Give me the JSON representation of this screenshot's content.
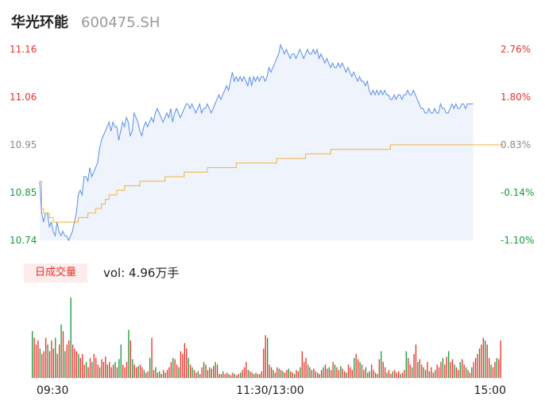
{
  "header": {
    "name": "华光环能",
    "code": "600475.SH"
  },
  "colors": {
    "up": "#e8322c",
    "down": "#1a9a3a",
    "price_line": "#5b8ee6",
    "avg_line": "#f2b33c",
    "fill": "#eef3fc"
  },
  "volume_panel": {
    "badge": "日成交量",
    "vol_label": "vol: 4.96万手"
  },
  "chart_data": [
    {
      "type": "line",
      "y_ticks_left": [
        "11.16",
        "11.06",
        "10.95",
        "10.85",
        "10.74"
      ],
      "y_ticks_right": [
        "2.76%",
        "1.80%",
        "0.83%",
        "-0.14%",
        "-1.10%"
      ],
      "ylim": [
        10.74,
        11.16
      ],
      "x_range": [
        0,
        240
      ],
      "series": [
        {
          "values": [
            10.87,
            10.8,
            10.78,
            10.8,
            10.8,
            10.77,
            10.78,
            10.76,
            10.75,
            10.78,
            10.76,
            10.75,
            10.76,
            10.75,
            10.75,
            10.74,
            10.75,
            10.76,
            10.78,
            10.8,
            10.84,
            10.85,
            10.84,
            10.88,
            10.88,
            10.87,
            10.9,
            10.88,
            10.89,
            10.9,
            10.91,
            10.94,
            10.96,
            10.97,
            10.98,
            10.99,
            11,
            10.98,
            11,
            10.99,
            10.99,
            10.96,
            10.98,
            11,
            10.99,
            11.01,
            11,
            10.97,
            10.98,
            11.02,
            11.01,
            11.0,
            10.98,
            10.97,
            10.99,
            11.0,
            10.99,
            11.0,
            11.01,
            11.0,
            11.02,
            11.03,
            11.02,
            11.01,
            11.0,
            11.01,
            11.02,
            11.01,
            11.03,
            11.0,
            11.02,
            11.03,
            11.02,
            11.01,
            11.02,
            11.03,
            11.04,
            11.04,
            11.03,
            11.04,
            11.03,
            11.02,
            11.03,
            11.04,
            11.02,
            11.03,
            11.03,
            11.04,
            11.03,
            11.02,
            11.03,
            11.04,
            11.05,
            11.06,
            11.05,
            11.06,
            11.07,
            11.08,
            11.07,
            11.09,
            11.11,
            11.09,
            11.1,
            11.09,
            11.1,
            11.09,
            11.1,
            11.09,
            11.08,
            11.1,
            11.08,
            11.1,
            11.09,
            11.1,
            11.09,
            11.1,
            11.1,
            11.09,
            11.1,
            11.12,
            11.11,
            11.12,
            11.13,
            11.14,
            11.15,
            11.17,
            11.16,
            11.15,
            11.16,
            11.15,
            11.14,
            11.15,
            11.15,
            11.14,
            11.15,
            11.16,
            11.15,
            11.14,
            11.15,
            11.16,
            11.15,
            11.15,
            11.16,
            11.15,
            11.16,
            11.14,
            11.15,
            11.14,
            11.13,
            11.14,
            11.13,
            11.12,
            11.13,
            11.12,
            11.12,
            11.13,
            11.12,
            11.13,
            11.12,
            11.11,
            11.12,
            11.11,
            11.1,
            11.11,
            11.1,
            11.09,
            11.1,
            11.09,
            11.09,
            11.08,
            11.09,
            11.07,
            11.06,
            11.07,
            11.06,
            11.07,
            11.06,
            11.07,
            11.06,
            11.07,
            11.06,
            11.06,
            11.05,
            11.05,
            11.06,
            11.05,
            11.06,
            11.06,
            11.05,
            11.06,
            11.06,
            11.07,
            11.06,
            11.06,
            11.07,
            11.06,
            11.05,
            11.04,
            11.03,
            11.03,
            11.02,
            11.02,
            11.03,
            11.02,
            11.02,
            11.03,
            11.02,
            11.02,
            11.04,
            11.03,
            11.03,
            11.02,
            11.02,
            11.03,
            11.04,
            11.03,
            11.04,
            11.03,
            11.03,
            11.04,
            11.04,
            11.03,
            11.04,
            11.04,
            11.04,
            11.04
          ]
        },
        {
          "values": [
            10.87,
            10.81,
            10.8,
            10.8,
            10.8,
            10.79,
            10.79,
            10.78,
            10.78,
            10.78,
            10.78,
            10.78,
            10.78,
            10.78,
            10.78,
            10.78,
            10.78,
            10.78,
            10.78,
            10.78,
            10.79,
            10.79,
            10.79,
            10.79,
            10.79,
            10.8,
            10.8,
            10.8,
            10.8,
            10.81,
            10.81,
            10.81,
            10.82,
            10.82,
            10.83,
            10.83,
            10.84,
            10.84,
            10.84,
            10.84,
            10.85,
            10.85,
            10.85,
            10.85,
            10.86,
            10.86,
            10.86,
            10.86,
            10.86,
            10.86,
            10.86,
            10.86,
            10.87,
            10.87,
            10.87,
            10.87,
            10.87,
            10.87,
            10.87,
            10.87,
            10.87,
            10.87,
            10.87,
            10.87,
            10.87,
            10.88,
            10.88,
            10.88,
            10.88,
            10.88,
            10.88,
            10.88,
            10.88,
            10.88,
            10.88,
            10.89,
            10.89,
            10.89,
            10.89,
            10.89,
            10.89,
            10.89,
            10.89,
            10.89,
            10.89,
            10.89,
            10.89,
            10.9,
            10.9,
            10.9,
            10.9,
            10.9,
            10.9,
            10.9,
            10.9,
            10.9,
            10.9,
            10.9,
            10.9,
            10.9,
            10.9,
            10.9,
            10.91,
            10.91,
            10.91,
            10.91,
            10.91,
            10.91,
            10.91,
            10.91,
            10.91,
            10.91,
            10.91,
            10.91,
            10.91,
            10.91,
            10.91,
            10.91,
            10.91,
            10.91,
            10.91,
            10.91,
            10.91,
            10.92,
            10.92,
            10.92,
            10.92,
            10.92,
            10.92,
            10.92,
            10.92,
            10.92,
            10.92,
            10.92,
            10.92,
            10.92,
            10.92,
            10.92,
            10.93,
            10.93,
            10.93,
            10.93,
            10.93,
            10.93,
            10.93,
            10.93,
            10.93,
            10.93,
            10.93,
            10.93,
            10.93,
            10.94,
            10.94,
            10.94,
            10.94,
            10.94,
            10.94,
            10.94,
            10.94,
            10.94,
            10.94,
            10.94,
            10.94,
            10.94,
            10.94,
            10.94,
            10.94,
            10.94,
            10.94,
            10.94,
            10.94,
            10.94,
            10.94,
            10.94,
            10.94,
            10.94,
            10.94,
            10.94,
            10.94,
            10.94,
            10.94,
            10.94,
            10.95,
            10.95,
            10.95,
            10.95,
            10.95,
            10.95,
            10.95,
            10.95,
            10.95,
            10.95,
            10.95,
            10.95,
            10.95,
            10.95,
            10.95,
            10.95,
            10.95,
            10.95,
            10.95,
            10.95,
            10.95,
            10.95,
            10.95,
            10.95,
            10.95,
            10.95,
            10.95,
            10.95,
            10.95,
            10.95,
            10.95,
            10.95,
            10.95,
            10.95,
            10.95,
            10.95,
            10.95,
            10.95,
            10.95,
            10.95,
            10.95,
            10.95,
            10.95,
            10.95,
            10.95,
            10.95,
            10.95,
            10.95,
            10.95,
            10.95,
            10.95,
            10.95,
            10.95,
            10.95,
            10.95,
            10.95,
            10.95,
            10.95,
            10.95,
            10.95
          ]
        }
      ]
    },
    {
      "type": "bar",
      "x_ticks": [
        "09:30",
        "11:30/13:00",
        "15:00"
      ],
      "values": [
        35,
        30,
        25,
        28,
        22,
        18,
        20,
        30,
        25,
        20,
        28,
        22,
        30,
        18,
        25,
        40,
        35,
        20,
        25,
        28,
        60,
        25,
        22,
        20,
        18,
        15,
        18,
        10,
        12,
        8,
        15,
        12,
        18,
        15,
        10,
        8,
        14,
        12,
        16,
        10,
        12,
        8,
        10,
        12,
        8,
        14,
        25,
        10,
        8,
        12,
        36,
        28,
        14,
        10,
        8,
        9,
        10,
        8,
        6,
        4,
        5,
        15,
        30,
        6,
        8,
        4,
        5,
        3,
        6,
        4,
        6,
        8,
        12,
        15,
        14,
        10,
        8,
        20,
        18,
        26,
        22,
        15,
        10,
        8,
        6,
        4,
        5,
        3,
        8,
        12,
        10,
        6,
        8,
        7,
        9,
        12,
        10,
        3,
        3,
        5,
        3,
        4,
        3,
        2,
        4,
        3,
        2,
        3,
        4,
        6,
        8,
        12,
        6,
        5,
        4,
        3,
        4,
        3,
        3,
        5,
        22,
        32,
        30,
        10,
        8,
        6,
        4,
        8,
        7,
        6,
        5,
        4,
        6,
        7,
        5,
        4,
        3,
        6,
        5,
        8,
        20,
        12,
        15,
        10,
        8,
        6,
        7,
        5,
        4,
        3,
        6,
        8,
        10,
        7,
        8,
        6,
        12,
        10,
        8,
        6,
        9,
        7,
        5,
        4,
        10,
        8,
        6,
        15,
        18,
        14,
        12,
        10,
        6,
        8,
        4,
        5,
        10,
        6,
        4,
        3,
        14,
        20,
        12,
        8,
        4,
        6,
        3,
        5,
        6,
        4,
        5,
        3,
        4,
        6,
        20,
        15,
        10,
        8,
        18,
        25,
        12,
        14,
        10,
        8,
        6,
        12,
        5,
        8,
        4,
        6,
        10,
        8,
        12,
        15,
        10,
        16,
        20,
        12,
        14,
        10,
        8,
        6,
        12,
        14,
        10,
        8,
        6,
        4,
        8,
        12,
        15,
        18,
        22,
        25,
        30,
        28,
        25,
        15,
        10,
        8,
        12,
        15,
        14,
        28
      ],
      "value_colors": [
        "down",
        "up",
        "up",
        "up",
        "down",
        "up",
        "up",
        "up",
        "down",
        "up",
        "up",
        "up",
        "down",
        "up",
        "up",
        "down",
        "up",
        "down",
        "up",
        "up",
        "down",
        "up",
        "up",
        "up",
        "down",
        "up",
        "up",
        "up",
        "down",
        "up",
        "up",
        "down",
        "up",
        "up",
        "up",
        "down",
        "up",
        "up",
        "up",
        "down",
        "up",
        "up",
        "up",
        "down",
        "up",
        "down",
        "down",
        "up",
        "up",
        "up",
        "down",
        "up",
        "down",
        "up",
        "up",
        "down",
        "up",
        "up",
        "down",
        "up",
        "up",
        "down",
        "up",
        "up",
        "down",
        "up",
        "down",
        "up",
        "up",
        "down",
        "up",
        "up",
        "up",
        "down",
        "up",
        "up",
        "down",
        "up",
        "up",
        "up",
        "up",
        "down",
        "up",
        "down",
        "up",
        "up",
        "down",
        "up",
        "up",
        "down",
        "up",
        "up",
        "down",
        "up",
        "up",
        "down",
        "up",
        "up",
        "up",
        "down",
        "up",
        "up",
        "down",
        "up",
        "up",
        "down",
        "up",
        "up",
        "down",
        "up",
        "up",
        "up",
        "down",
        "up",
        "up",
        "down",
        "up",
        "up",
        "down",
        "up",
        "up",
        "up",
        "down",
        "up",
        "up",
        "down",
        "up",
        "up",
        "down",
        "up",
        "down",
        "up",
        "up",
        "down",
        "up",
        "up",
        "down",
        "up",
        "up",
        "down",
        "up",
        "up",
        "up",
        "down",
        "up",
        "down",
        "up",
        "up",
        "down",
        "up",
        "up",
        "down",
        "up",
        "up",
        "down",
        "up",
        "up",
        "down",
        "up",
        "up",
        "down",
        "up",
        "up",
        "down",
        "up",
        "up",
        "up",
        "down",
        "up",
        "up",
        "down",
        "up",
        "up",
        "down",
        "up",
        "down",
        "up",
        "up",
        "down",
        "up",
        "up",
        "down",
        "up",
        "up",
        "down",
        "up",
        "up",
        "down",
        "up",
        "up",
        "up",
        "down",
        "up",
        "up",
        "down",
        "up",
        "up",
        "down",
        "up",
        "up",
        "down",
        "up",
        "up",
        "down",
        "up",
        "up",
        "down",
        "up",
        "up",
        "down",
        "up",
        "up",
        "up",
        "down",
        "up",
        "up",
        "down",
        "up",
        "up",
        "down",
        "up",
        "up",
        "down",
        "up",
        "up",
        "down",
        "up",
        "up",
        "down",
        "up",
        "up",
        "up",
        "down",
        "up",
        "up",
        "down",
        "up",
        "up",
        "down",
        "up",
        "up",
        "down",
        "up",
        "up",
        "up",
        "down"
      ]
    }
  ]
}
